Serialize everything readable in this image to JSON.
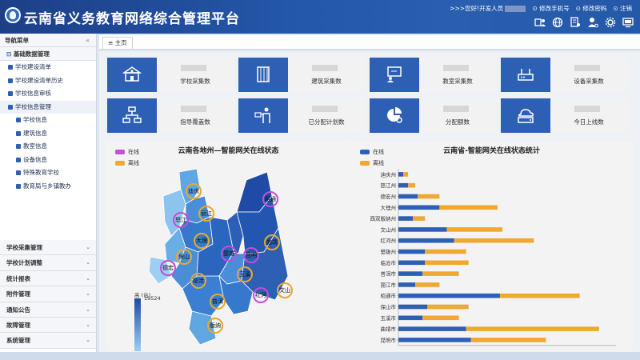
{
  "header": {
    "title": "云南省义务教育网络综合管理平台",
    "greeting": ">>>您好!开发人员",
    "change_phone": "修改手机号",
    "change_password": "修改密码",
    "logout": "注销"
  },
  "sidebar": {
    "title": "导航菜单",
    "collapse": "«",
    "group_open": "基础数据管理",
    "items": [
      {
        "label": "学校建设清单"
      },
      {
        "label": "学校建设清单历史"
      },
      {
        "label": "学校信息审核"
      },
      {
        "label": "学校信息管理"
      }
    ],
    "subitems": [
      {
        "label": "学校信息"
      },
      {
        "label": "建筑信息"
      },
      {
        "label": "教室信息"
      },
      {
        "label": "设备信息"
      },
      {
        "label": "特殊教育学校"
      },
      {
        "label": "教育局与乡镇教办"
      }
    ],
    "groups": [
      {
        "label": "学校采集管理"
      },
      {
        "label": "学校计划调整"
      },
      {
        "label": "统计报表"
      },
      {
        "label": "附件管理"
      },
      {
        "label": "通知公告"
      },
      {
        "label": "故障管理"
      },
      {
        "label": "系统管理"
      }
    ]
  },
  "tabs": {
    "home": "≡ 主页"
  },
  "stats": [
    {
      "label": "学校采集数",
      "icon": "school-icon"
    },
    {
      "label": "建筑采集数",
      "icon": "building-icon"
    },
    {
      "label": "教室采集数",
      "icon": "classroom-icon"
    },
    {
      "label": "设备采集数",
      "icon": "router-icon"
    },
    {
      "label": "指导覆盖数",
      "icon": "org-chart-icon"
    },
    {
      "label": "已分配计划数",
      "icon": "teacher-icon"
    },
    {
      "label": "分配额数",
      "icon": "pie-settings-icon"
    },
    {
      "label": "今日上线数",
      "icon": "cloud-drive-icon"
    }
  ],
  "map_panel": {
    "title": "云南各地州—智能网关在线状态",
    "legend": [
      "在线",
      "离线"
    ],
    "scale_high": "高",
    "scale_unit": "(台)",
    "scale_value": "19524",
    "cities": [
      "迪庆",
      "怒江",
      "丽江",
      "大理",
      "保山",
      "德宏",
      "临沧",
      "普洱",
      "版纳",
      "楚雄",
      "昆明",
      "曲靖",
      "昭通",
      "玉溪",
      "红河",
      "文山"
    ]
  },
  "chart_data": {
    "type": "bar",
    "title": "云南省-智能网关在线状态统计",
    "orientation": "horizontal",
    "stacked": true,
    "colors": {
      "在线": "#2d5fb5",
      "离线": "#f0a830"
    },
    "categories": [
      "迪庆州",
      "怒江州",
      "德宏州",
      "大理州",
      "西双版纳州",
      "文山州",
      "红河州",
      "楚雄州",
      "临沧市",
      "普洱市",
      "丽江市",
      "昭通市",
      "保山市",
      "玉溪市",
      "曲靖市",
      "昆明市"
    ],
    "series": [
      {
        "name": "在线",
        "values": [
          200,
          400,
          800,
          1700,
          600,
          2000,
          2300,
          1100,
          1100,
          1000,
          700,
          4200,
          1200,
          1000,
          2800,
          3000
        ]
      },
      {
        "name": "离线",
        "values": [
          200,
          300,
          900,
          2400,
          500,
          2300,
          3300,
          1700,
          1800,
          1500,
          1000,
          3300,
          1700,
          1500,
          5500,
          3100
        ]
      }
    ],
    "legend_position": "top-left"
  }
}
